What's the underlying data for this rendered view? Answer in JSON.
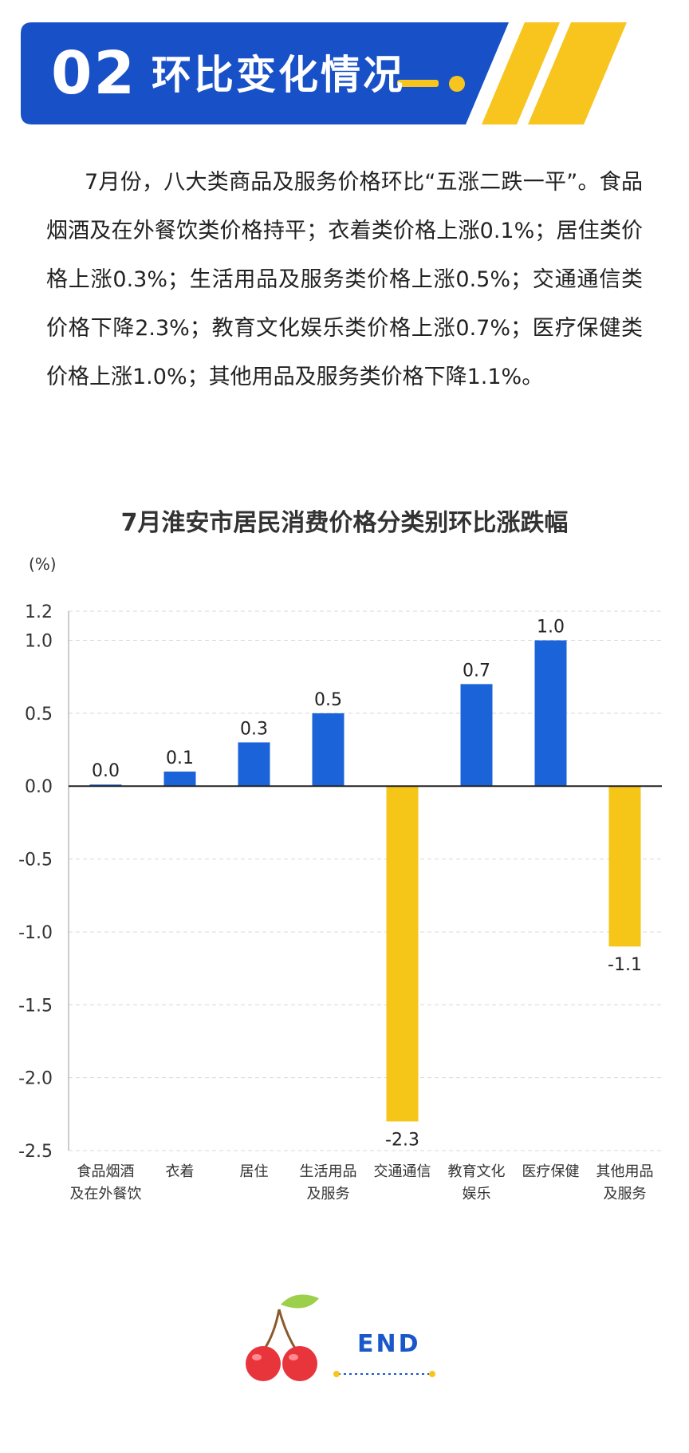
{
  "header": {
    "number": "02",
    "title": "环比变化情况"
  },
  "paragraph": "7月份，八大类商品及服务价格环比“五涨二跌一平”。食品烟酒及在外餐饮类价格持平；衣着类价格上涨0.1%；居住类价格上涨0.3%；生活用品及服务类价格上涨0.5%；交通通信类价格下降2.3%；教育文化娱乐类价格上涨0.7%；医疗保健类价格上涨1.0%；其他用品及服务类价格下降1.1%。",
  "chart_data": {
    "type": "bar",
    "title": "7月淮安市居民消费价格分类别环比涨跌幅",
    "ylabel": "(%)",
    "ylim": [
      -2.5,
      1.2
    ],
    "yticks": [
      "1.2",
      "1.0",
      "0.5",
      "0.0",
      "-0.5",
      "-1.0",
      "-1.5",
      "-2.0",
      "-2.5"
    ],
    "ytick_values": [
      1.2,
      1.0,
      0.5,
      0.0,
      -0.5,
      -1.0,
      -1.5,
      -2.0,
      -2.5
    ],
    "categories": [
      [
        "食品烟酒",
        "及在外餐饮"
      ],
      [
        "衣着"
      ],
      [
        "居住"
      ],
      [
        "生活用品",
        "及服务"
      ],
      [
        "交通通信"
      ],
      [
        "教育文化",
        "娱乐"
      ],
      [
        "医疗保健"
      ],
      [
        "其他用品",
        "及服务"
      ]
    ],
    "values": [
      0.0,
      0.1,
      0.3,
      0.5,
      -2.3,
      0.7,
      1.0,
      -1.1
    ],
    "value_labels": [
      "0.0",
      "0.1",
      "0.3",
      "0.5",
      "-2.3",
      "0.7",
      "1.0",
      "-1.1"
    ],
    "colors": {
      "positive": "#1a63d9",
      "negative": "#f5c518"
    },
    "grid": "dashed horizontal"
  },
  "footer": {
    "end_text": "END"
  },
  "colors": {
    "brand_blue": "#1850c8",
    "accent_yellow": "#f7c51e"
  }
}
